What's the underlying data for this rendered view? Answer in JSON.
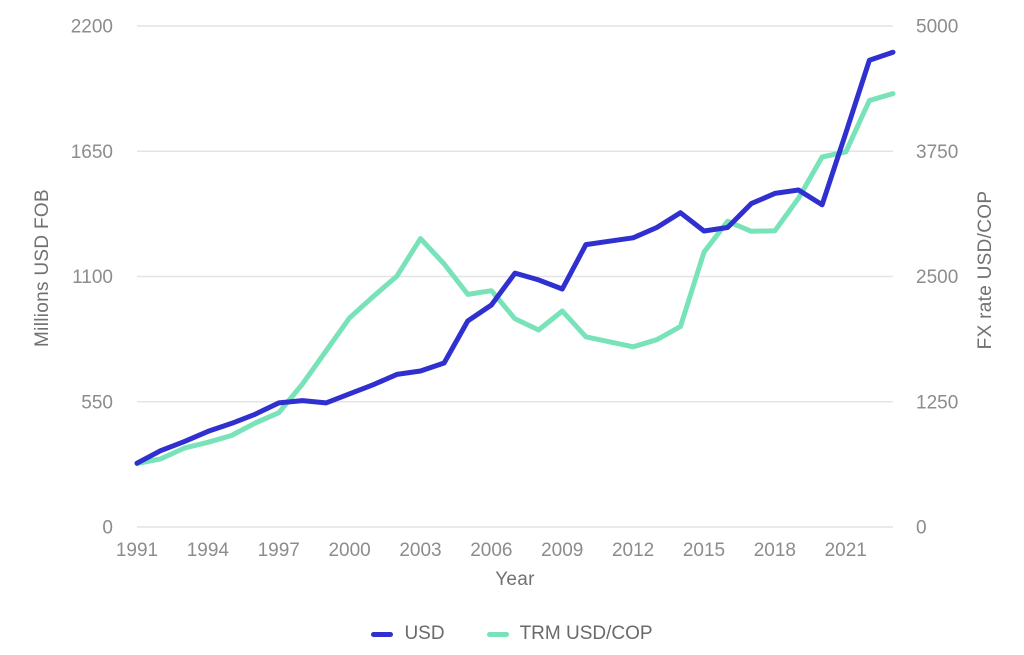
{
  "chart_data": {
    "type": "line",
    "title": "",
    "xlabel": "Year",
    "x": [
      1991,
      1992,
      1993,
      1994,
      1995,
      1996,
      1997,
      1998,
      1999,
      2000,
      2001,
      2002,
      2003,
      2004,
      2005,
      2006,
      2007,
      2008,
      2009,
      2010,
      2011,
      2012,
      2013,
      2014,
      2015,
      2016,
      2017,
      2018,
      2019,
      2020,
      2021,
      2022,
      2023
    ],
    "x_ticks": [
      1991,
      1994,
      1997,
      2000,
      2003,
      2006,
      2009,
      2012,
      2015,
      2018,
      2021
    ],
    "series": [
      {
        "name": "USD",
        "axis": "left",
        "color": "#302fd0",
        "values": [
          280,
          335,
          375,
          420,
          455,
          495,
          545,
          555,
          545,
          585,
          625,
          670,
          685,
          720,
          905,
          975,
          1115,
          1085,
          1045,
          1240,
          1255,
          1270,
          1315,
          1380,
          1300,
          1315,
          1420,
          1465,
          1480,
          1415,
          1730,
          2050,
          2085
        ]
      },
      {
        "name": "TRM USD/COP",
        "axis": "right",
        "color": "#78e2b8",
        "values": [
          633,
          680,
          787,
          845,
          913,
          1037,
          1141,
          1426,
          1756,
          2088,
          2300,
          2504,
          2878,
          2626,
          2321,
          2358,
          2078,
          1966,
          2156,
          1898,
          1848,
          1798,
          1869,
          2000,
          2743,
          3051,
          2951,
          2956,
          3281,
          3693,
          3744,
          4256,
          4325
        ]
      }
    ],
    "left_axis": {
      "label": "Millions USD FOB",
      "ticks": [
        0,
        550,
        1100,
        1650,
        2200
      ],
      "range": [
        0,
        2200
      ]
    },
    "right_axis": {
      "label": "FX rate USD/COP",
      "ticks": [
        0,
        1250,
        2500,
        3750,
        5000
      ],
      "range": [
        0,
        5000
      ]
    },
    "legend_position": "bottom",
    "grid": "horizontal"
  },
  "layout_colors": {
    "grid": "#e4e4e4",
    "tick_text": "#8c8c8c",
    "background": "#ffffff"
  }
}
